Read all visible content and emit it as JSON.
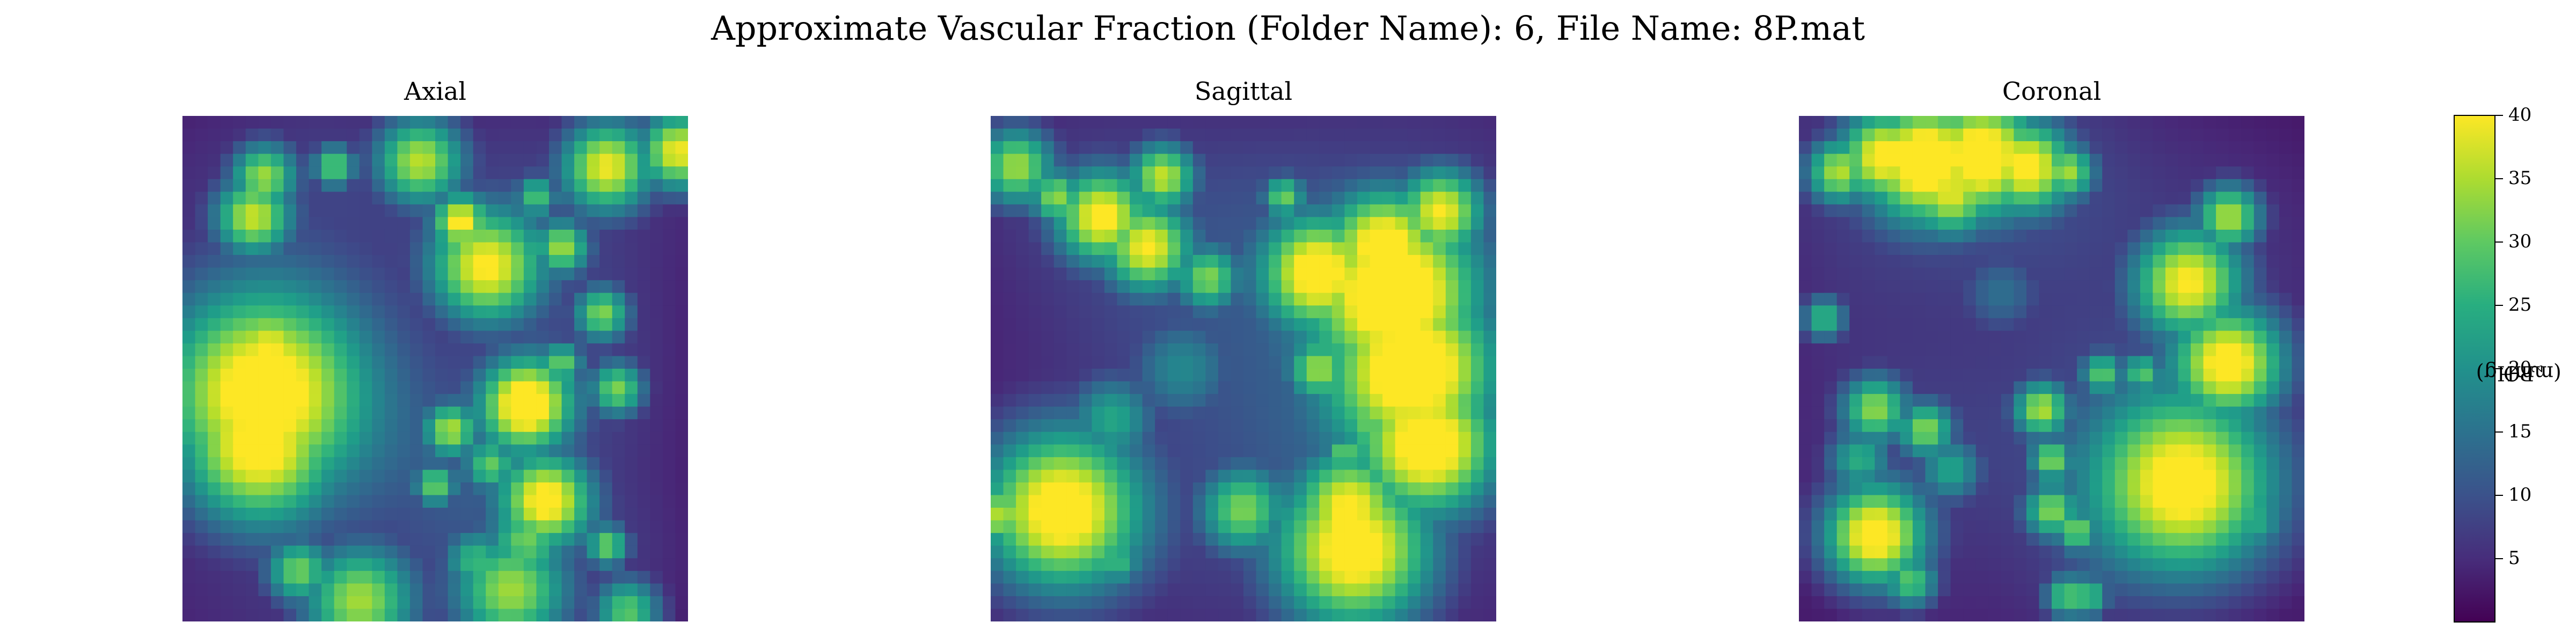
{
  "figure": {
    "suptitle": "Approximate Vascular Fraction (Folder Name): 6, File Name: 8P.mat"
  },
  "chart_data": [
    {
      "type": "heatmap",
      "title": "Axial",
      "colormap": "viridis",
      "vmin": 0,
      "vmax": 40,
      "axes": "off",
      "blobs": [
        {
          "x": 0.16,
          "y": 0.55,
          "r": 0.09,
          "v": 40
        },
        {
          "x": 0.15,
          "y": 0.65,
          "r": 0.07,
          "v": 40
        },
        {
          "x": 0.17,
          "y": 0.47,
          "r": 0.05,
          "v": 38
        },
        {
          "x": 0.68,
          "y": 0.57,
          "r": 0.04,
          "v": 40
        },
        {
          "x": 0.72,
          "y": 0.76,
          "r": 0.04,
          "v": 37
        },
        {
          "x": 0.6,
          "y": 0.3,
          "r": 0.05,
          "v": 36
        },
        {
          "x": 0.55,
          "y": 0.21,
          "r": 0.025,
          "v": 38
        },
        {
          "x": 0.14,
          "y": 0.2,
          "r": 0.035,
          "v": 34
        },
        {
          "x": 0.16,
          "y": 0.12,
          "r": 0.03,
          "v": 32
        },
        {
          "x": 0.47,
          "y": 0.09,
          "r": 0.04,
          "v": 34
        },
        {
          "x": 0.84,
          "y": 0.1,
          "r": 0.04,
          "v": 36
        },
        {
          "x": 0.98,
          "y": 0.07,
          "r": 0.035,
          "v": 38
        },
        {
          "x": 0.75,
          "y": 0.26,
          "r": 0.025,
          "v": 32
        },
        {
          "x": 0.83,
          "y": 0.39,
          "r": 0.025,
          "v": 30
        },
        {
          "x": 0.65,
          "y": 0.94,
          "r": 0.05,
          "v": 30
        },
        {
          "x": 0.35,
          "y": 0.96,
          "r": 0.05,
          "v": 32
        },
        {
          "x": 0.23,
          "y": 0.9,
          "r": 0.03,
          "v": 30
        },
        {
          "x": 0.86,
          "y": 0.54,
          "r": 0.025,
          "v": 30
        },
        {
          "x": 0.53,
          "y": 0.62,
          "r": 0.025,
          "v": 32
        },
        {
          "x": 0.68,
          "y": 0.84,
          "r": 0.035,
          "v": 28
        },
        {
          "x": 0.88,
          "y": 0.98,
          "r": 0.03,
          "v": 28
        },
        {
          "x": 0.61,
          "y": 0.69,
          "r": 0.025,
          "v": 28
        },
        {
          "x": 0.5,
          "y": 0.73,
          "r": 0.02,
          "v": 30
        },
        {
          "x": 0.84,
          "y": 0.85,
          "r": 0.02,
          "v": 30
        },
        {
          "x": 0.75,
          "y": 0.49,
          "r": 0.02,
          "v": 30
        },
        {
          "x": 0.58,
          "y": 0.88,
          "r": 0.03,
          "v": 26
        },
        {
          "x": 0.3,
          "y": 0.1,
          "r": 0.02,
          "v": 30
        },
        {
          "x": 0.7,
          "y": 0.16,
          "r": 0.02,
          "v": 28
        }
      ]
    },
    {
      "type": "heatmap",
      "title": "Sagittal",
      "colormap": "viridis",
      "vmin": 0,
      "vmax": 40,
      "axes": "off",
      "blobs": [
        {
          "x": 0.8,
          "y": 0.35,
          "r": 0.07,
          "v": 40
        },
        {
          "x": 0.84,
          "y": 0.5,
          "r": 0.07,
          "v": 40
        },
        {
          "x": 0.87,
          "y": 0.65,
          "r": 0.06,
          "v": 40
        },
        {
          "x": 0.78,
          "y": 0.26,
          "r": 0.05,
          "v": 40
        },
        {
          "x": 0.65,
          "y": 0.31,
          "r": 0.05,
          "v": 40
        },
        {
          "x": 0.89,
          "y": 0.19,
          "r": 0.04,
          "v": 38
        },
        {
          "x": 0.14,
          "y": 0.78,
          "r": 0.07,
          "v": 40
        },
        {
          "x": 0.72,
          "y": 0.86,
          "r": 0.07,
          "v": 40
        },
        {
          "x": 0.71,
          "y": 0.78,
          "r": 0.05,
          "v": 38
        },
        {
          "x": 0.22,
          "y": 0.2,
          "r": 0.04,
          "v": 36
        },
        {
          "x": 0.31,
          "y": 0.26,
          "r": 0.04,
          "v": 36
        },
        {
          "x": 0.34,
          "y": 0.12,
          "r": 0.03,
          "v": 34
        },
        {
          "x": 0.05,
          "y": 0.1,
          "r": 0.035,
          "v": 32
        },
        {
          "x": 0.43,
          "y": 0.32,
          "r": 0.03,
          "v": 30
        },
        {
          "x": 0.5,
          "y": 0.78,
          "r": 0.04,
          "v": 30
        },
        {
          "x": 0.65,
          "y": 0.5,
          "r": 0.03,
          "v": 32
        },
        {
          "x": 0.75,
          "y": 0.62,
          "r": 0.02,
          "v": 30
        },
        {
          "x": 0.58,
          "y": 0.16,
          "r": 0.02,
          "v": 30
        },
        {
          "x": 0.13,
          "y": 0.16,
          "r": 0.025,
          "v": 32
        },
        {
          "x": 0.24,
          "y": 0.6,
          "r": 0.04,
          "v": 22
        },
        {
          "x": 0.38,
          "y": 0.5,
          "r": 0.05,
          "v": 18
        },
        {
          "x": 0.02,
          "y": 0.79,
          "r": 0.03,
          "v": 34
        },
        {
          "x": 0.7,
          "y": 0.67,
          "r": 0.02,
          "v": 30
        },
        {
          "x": 0.25,
          "y": 0.88,
          "r": 0.025,
          "v": 26
        }
      ]
    },
    {
      "type": "heatmap",
      "title": "Coronal",
      "colormap": "viridis",
      "vmin": 0,
      "vmax": 40,
      "axes": "off",
      "blobs": [
        {
          "x": 0.25,
          "y": 0.09,
          "r": 0.05,
          "v": 40
        },
        {
          "x": 0.36,
          "y": 0.08,
          "r": 0.05,
          "v": 40
        },
        {
          "x": 0.17,
          "y": 0.08,
          "r": 0.04,
          "v": 38
        },
        {
          "x": 0.45,
          "y": 0.1,
          "r": 0.04,
          "v": 38
        },
        {
          "x": 0.3,
          "y": 0.15,
          "r": 0.04,
          "v": 36
        },
        {
          "x": 0.08,
          "y": 0.11,
          "r": 0.03,
          "v": 34
        },
        {
          "x": 0.53,
          "y": 0.11,
          "r": 0.025,
          "v": 32
        },
        {
          "x": 0.76,
          "y": 0.73,
          "r": 0.08,
          "v": 40
        },
        {
          "x": 0.85,
          "y": 0.49,
          "r": 0.05,
          "v": 40
        },
        {
          "x": 0.77,
          "y": 0.33,
          "r": 0.05,
          "v": 38
        },
        {
          "x": 0.85,
          "y": 0.2,
          "r": 0.03,
          "v": 34
        },
        {
          "x": 0.15,
          "y": 0.83,
          "r": 0.045,
          "v": 40
        },
        {
          "x": 0.15,
          "y": 0.58,
          "r": 0.03,
          "v": 30
        },
        {
          "x": 0.25,
          "y": 0.62,
          "r": 0.025,
          "v": 30
        },
        {
          "x": 0.48,
          "y": 0.58,
          "r": 0.025,
          "v": 32
        },
        {
          "x": 0.5,
          "y": 0.68,
          "r": 0.02,
          "v": 30
        },
        {
          "x": 0.5,
          "y": 0.78,
          "r": 0.025,
          "v": 30
        },
        {
          "x": 0.55,
          "y": 0.82,
          "r": 0.02,
          "v": 30
        },
        {
          "x": 0.22,
          "y": 0.92,
          "r": 0.025,
          "v": 28
        },
        {
          "x": 0.53,
          "y": 0.95,
          "r": 0.02,
          "v": 28
        },
        {
          "x": 0.57,
          "y": 0.95,
          "r": 0.02,
          "v": 28
        },
        {
          "x": 0.6,
          "y": 0.51,
          "r": 0.02,
          "v": 28
        },
        {
          "x": 0.68,
          "y": 0.51,
          "r": 0.02,
          "v": 28
        },
        {
          "x": 0.05,
          "y": 0.4,
          "r": 0.02,
          "v": 26
        },
        {
          "x": 0.3,
          "y": 0.7,
          "r": 0.03,
          "v": 22
        },
        {
          "x": 0.9,
          "y": 0.8,
          "r": 0.03,
          "v": 24
        },
        {
          "x": 0.4,
          "y": 0.35,
          "r": 0.04,
          "v": 14
        },
        {
          "x": 0.12,
          "y": 0.68,
          "r": 0.03,
          "v": 24
        }
      ]
    }
  ],
  "colorbar": {
    "label_prefix": "PO",
    "label_sub": "2",
    "label_suffix": "(mmHg)",
    "min": 0,
    "max": 40,
    "ticks": [
      "5",
      "10",
      "15",
      "20",
      "25",
      "30",
      "35",
      "40"
    ]
  }
}
